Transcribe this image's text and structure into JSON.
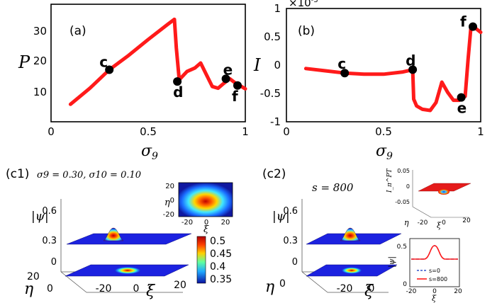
{
  "panel_a": {
    "label": "(a)",
    "ylabel": "P",
    "xlabel_base": "σ",
    "xlabel_sub": "9",
    "xticks": [
      "0",
      "0.5",
      "1"
    ],
    "yticks": [
      "10",
      "20",
      "30"
    ],
    "points": [
      {
        "label": "c",
        "x": 0.3,
        "y": 15.5
      },
      {
        "label": "d",
        "x": 0.65,
        "y": 12.0
      },
      {
        "label": "e",
        "x": 0.9,
        "y": 12.8
      },
      {
        "label": "f",
        "x": 0.96,
        "y": 10.8
      }
    ]
  },
  "panel_b": {
    "label": "(b)",
    "ylabel": "I",
    "multiplier_base": "×10",
    "multiplier_exp": "-3",
    "xlabel_base": "σ",
    "xlabel_sub": "9",
    "xticks": [
      "0",
      "0.5",
      "1"
    ],
    "yticks": [
      "-1",
      "-0.5",
      "0",
      "0.5",
      "1"
    ],
    "points": [
      {
        "label": "c",
        "x": 0.3,
        "y": -0.14
      },
      {
        "label": "d",
        "x": 0.65,
        "y": -0.08
      },
      {
        "label": "e",
        "x": 0.9,
        "y": -0.57
      },
      {
        "label": "f",
        "x": 0.96,
        "y": 0.68
      }
    ]
  },
  "panel_c1": {
    "label": "(c1)",
    "params": "σ9 = 0.30, σ10 = 0.10",
    "zlabel": "|ψ|",
    "zticks": [
      "0.6",
      "0.3",
      "0"
    ],
    "xlabel": "ξ",
    "ylabel": "η",
    "xticks": [
      "-20",
      "0",
      "20"
    ],
    "yticks": [
      "20",
      "0"
    ],
    "inset_xticks": [
      "-20",
      "0",
      "20"
    ],
    "inset_yticks": [
      "20",
      "0",
      "-20"
    ],
    "inset_xlabel": "ξ",
    "inset_ylabel": "η",
    "colorbar_ticks": [
      "0.5",
      "0.45",
      "0.4",
      "0.35"
    ]
  },
  "panel_c2": {
    "label": "(c2)",
    "param": "s = 800",
    "zlabel": "|ψ|",
    "zticks": [
      "0.6",
      "0.3",
      "0"
    ],
    "xlabel": "ξ",
    "ylabel": "η",
    "xticks": [
      "-20",
      "0",
      "20"
    ],
    "yticks": [
      "20",
      "0"
    ],
    "inset_top": {
      "ylabel": "I_π^PT",
      "zticks": [
        "0.05",
        "0",
        "-0.05"
      ],
      "xticks": [
        "-20",
        "0",
        "20"
      ],
      "xlabel": "ξ",
      "ylabel2": "η"
    },
    "inset_bottom": {
      "ylabel": "|ψ|",
      "yticks": [
        "0.5",
        "0"
      ],
      "xticks": [
        "-20",
        "0",
        "20"
      ],
      "xlabel": "ξ",
      "legend": [
        "s=0",
        "s=800"
      ]
    }
  },
  "colors": {
    "curve": "#ff1a1a",
    "marker": "#000000",
    "dash": "#3355cc"
  },
  "chart_data": [
    {
      "type": "line",
      "title": "(a)",
      "xlabel": "σ9",
      "ylabel": "P",
      "xlim": [
        0,
        1
      ],
      "ylim": [
        0,
        35
      ],
      "series": [
        {
          "x": [
            0.1,
            0.2,
            0.3,
            0.4,
            0.5,
            0.6,
            0.635,
            0.645,
            0.66,
            0.7,
            0.74,
            0.77,
            0.8,
            0.83,
            0.86,
            0.89,
            0.92,
            0.95,
            0.98,
            1.0
          ],
          "y": [
            5.2,
            10.0,
            15.5,
            19.8,
            24.5,
            29.0,
            30.5,
            22.0,
            12.5,
            15.0,
            16.0,
            17.5,
            14.0,
            10.5,
            10.0,
            11.5,
            12.8,
            11.5,
            10.5,
            9.8
          ]
        }
      ],
      "markers": {
        "c": [
          0.3,
          15.5
        ],
        "d": [
          0.65,
          12.0
        ],
        "e": [
          0.9,
          12.8
        ],
        "f": [
          0.96,
          10.8
        ]
      }
    },
    {
      "type": "line",
      "title": "(b)",
      "xlabel": "σ9",
      "ylabel": "I",
      "xlim": [
        0,
        1
      ],
      "ylim": [
        -1,
        1
      ],
      "series": [
        {
          "x": [
            0.1,
            0.2,
            0.3,
            0.4,
            0.5,
            0.6,
            0.65,
            0.655,
            0.67,
            0.7,
            0.74,
            0.77,
            0.8,
            0.83,
            0.86,
            0.89,
            0.92,
            0.935,
            0.95,
            0.97,
            1.0
          ],
          "y": [
            -0.06,
            -0.1,
            -0.14,
            -0.16,
            -0.16,
            -0.12,
            -0.08,
            -0.6,
            -0.72,
            -0.78,
            -0.8,
            -0.66,
            -0.3,
            -0.48,
            -0.62,
            -0.62,
            -0.55,
            0.1,
            0.68,
            0.66,
            0.58
          ]
        }
      ],
      "markers": {
        "c": [
          0.3,
          -0.14
        ],
        "d": [
          0.65,
          -0.08
        ],
        "e": [
          0.9,
          -0.57
        ],
        "f": [
          0.96,
          0.68
        ]
      }
    }
  ]
}
